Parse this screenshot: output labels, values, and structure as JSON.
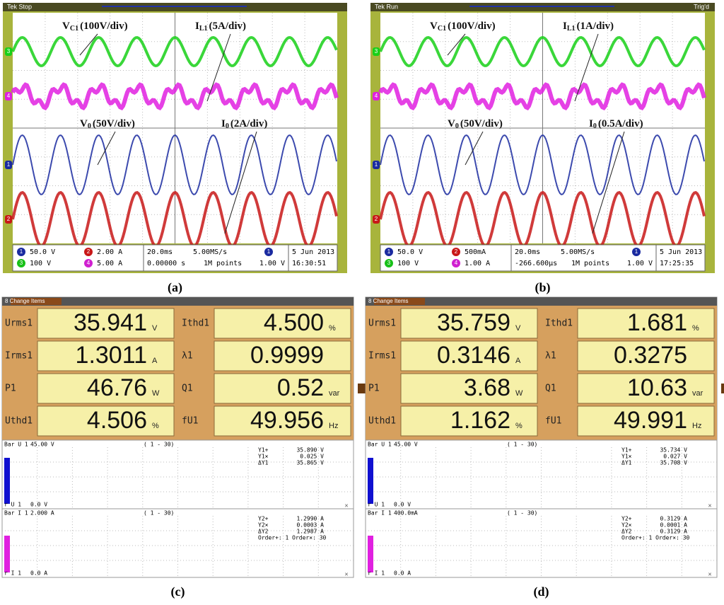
{
  "scopes": [
    {
      "caption": "(a)",
      "status": "Tek Stop",
      "labels": [
        {
          "main": "V",
          "sub": "C1",
          "scale": "(100V/div)"
        },
        {
          "main": "I",
          "sub": "L1",
          "scale": "(5A/div)"
        },
        {
          "main": "V",
          "sub": "0",
          "scale": "(50V/div)"
        },
        {
          "main": "I",
          "sub": "0",
          "scale": "(2A/div)"
        }
      ],
      "channels": [
        {
          "num": "1",
          "setting": "50.0 V"
        },
        {
          "num": "2",
          "setting": "2.00 A"
        },
        {
          "num": "3",
          "setting": "100 V"
        },
        {
          "num": "4",
          "setting": "5.00 A"
        }
      ],
      "timebase": "20.0ms",
      "sample_rate": "5.00MS/s",
      "position": "0.00000 s",
      "record": "1M points",
      "trigger_channel": "1",
      "trigger_level": "1.00 V",
      "date": "5 Jun 2013",
      "time": "16:30:51"
    },
    {
      "caption": "(b)",
      "status": "Tek Run",
      "trigger_state": "Trig'd",
      "labels": [
        {
          "main": "V",
          "sub": "C1",
          "scale": "(100V/div)"
        },
        {
          "main": "I",
          "sub": "L1",
          "scale": "(1A/div)"
        },
        {
          "main": "V",
          "sub": "0",
          "scale": "(50V/div)"
        },
        {
          "main": "I",
          "sub": "0",
          "scale": "(0.5A/div)"
        }
      ],
      "channels": [
        {
          "num": "1",
          "setting": "50.0 V"
        },
        {
          "num": "2",
          "setting": "500mA"
        },
        {
          "num": "3",
          "setting": "100 V"
        },
        {
          "num": "4",
          "setting": "1.00 A"
        }
      ],
      "timebase": "20.0ms",
      "sample_rate": "5.00MS/s",
      "position": "-266.600µs",
      "record": "1M points",
      "trigger_channel": "1",
      "trigger_level": "1.00 V",
      "date": "5 Jun 2013",
      "time": "17:25:35"
    }
  ],
  "meters": [
    {
      "caption": "(c)",
      "header": "8 Change Items",
      "readings": [
        {
          "name": "Urms1",
          "value": "35.941",
          "unit": "V"
        },
        {
          "name": "Irms1",
          "value": "1.3011",
          "unit": "A"
        },
        {
          "name": "P1",
          "value": "46.76",
          "unit": "W"
        },
        {
          "name": "Uthd1",
          "value": "4.506",
          "unit": "%"
        },
        {
          "name": "Ithd1",
          "value": "4.500",
          "unit": "%"
        },
        {
          "name": "λ1",
          "value": "0.9999"
        },
        {
          "name": "Q1",
          "value": "0.52",
          "unit": "var"
        },
        {
          "name": "fU1",
          "value": "49.956",
          "unit": "Hz"
        }
      ],
      "bars": [
        {
          "title": "Bar U 1",
          "scale": "45.00 V",
          "range": "( 1 - 30)",
          "foot": "r U 1",
          "zero": "0.0 V",
          "cursor": [
            [
              "Y1+",
              "35.890 V"
            ],
            [
              "Y1×",
              "0.025 V"
            ],
            [
              "ΔY1",
              "35.865 V"
            ]
          ]
        },
        {
          "title": "Bar I 1",
          "scale": "2.000 A",
          "range": "( 1 - 30)",
          "foot": "r I 1",
          "zero": "0.0 A",
          "cursor": [
            [
              "Y2+",
              "1.2990 A"
            ],
            [
              "Y2×",
              "0.0003 A"
            ],
            [
              "ΔY2",
              "1.2987 A"
            ]
          ],
          "order": "Order+:  1  Order×: 30"
        }
      ]
    },
    {
      "caption": "(d)",
      "header": "8 Change Items",
      "readings": [
        {
          "name": "Urms1",
          "value": "35.759",
          "unit": "V"
        },
        {
          "name": "Irms1",
          "value": "0.3146",
          "unit": "A"
        },
        {
          "name": "P1",
          "value": "3.68",
          "unit": "W"
        },
        {
          "name": "Uthd1",
          "value": "1.162",
          "unit": "%"
        },
        {
          "name": "Ithd1",
          "value": "1.681",
          "unit": "%"
        },
        {
          "name": "λ1",
          "value": "0.3275"
        },
        {
          "name": "Q1",
          "value": "10.63",
          "unit": "var"
        },
        {
          "name": "fU1",
          "value": "49.991",
          "unit": "Hz"
        }
      ],
      "bars": [
        {
          "title": "Bar U 1",
          "scale": "45.00 V",
          "range": "( 1 - 30)",
          "foot": "r U 1",
          "zero": "0.0 V",
          "cursor": [
            [
              "Y1+",
              "35.734 V"
            ],
            [
              "Y1×",
              "0.027 V"
            ],
            [
              "ΔY1",
              "35.708 V"
            ]
          ]
        },
        {
          "title": "Bar I 1",
          "scale": "400.0mA",
          "range": "( 1 - 30)",
          "foot": "r I 1",
          "zero": "0.0 A",
          "cursor": [
            [
              "Y2+",
              "0.3129 A"
            ],
            [
              "Y2×",
              "0.0001 A"
            ],
            [
              "ΔY2",
              "0.3129 A"
            ]
          ],
          "order": "Order+:  1  Order×: 30"
        }
      ]
    }
  ]
}
